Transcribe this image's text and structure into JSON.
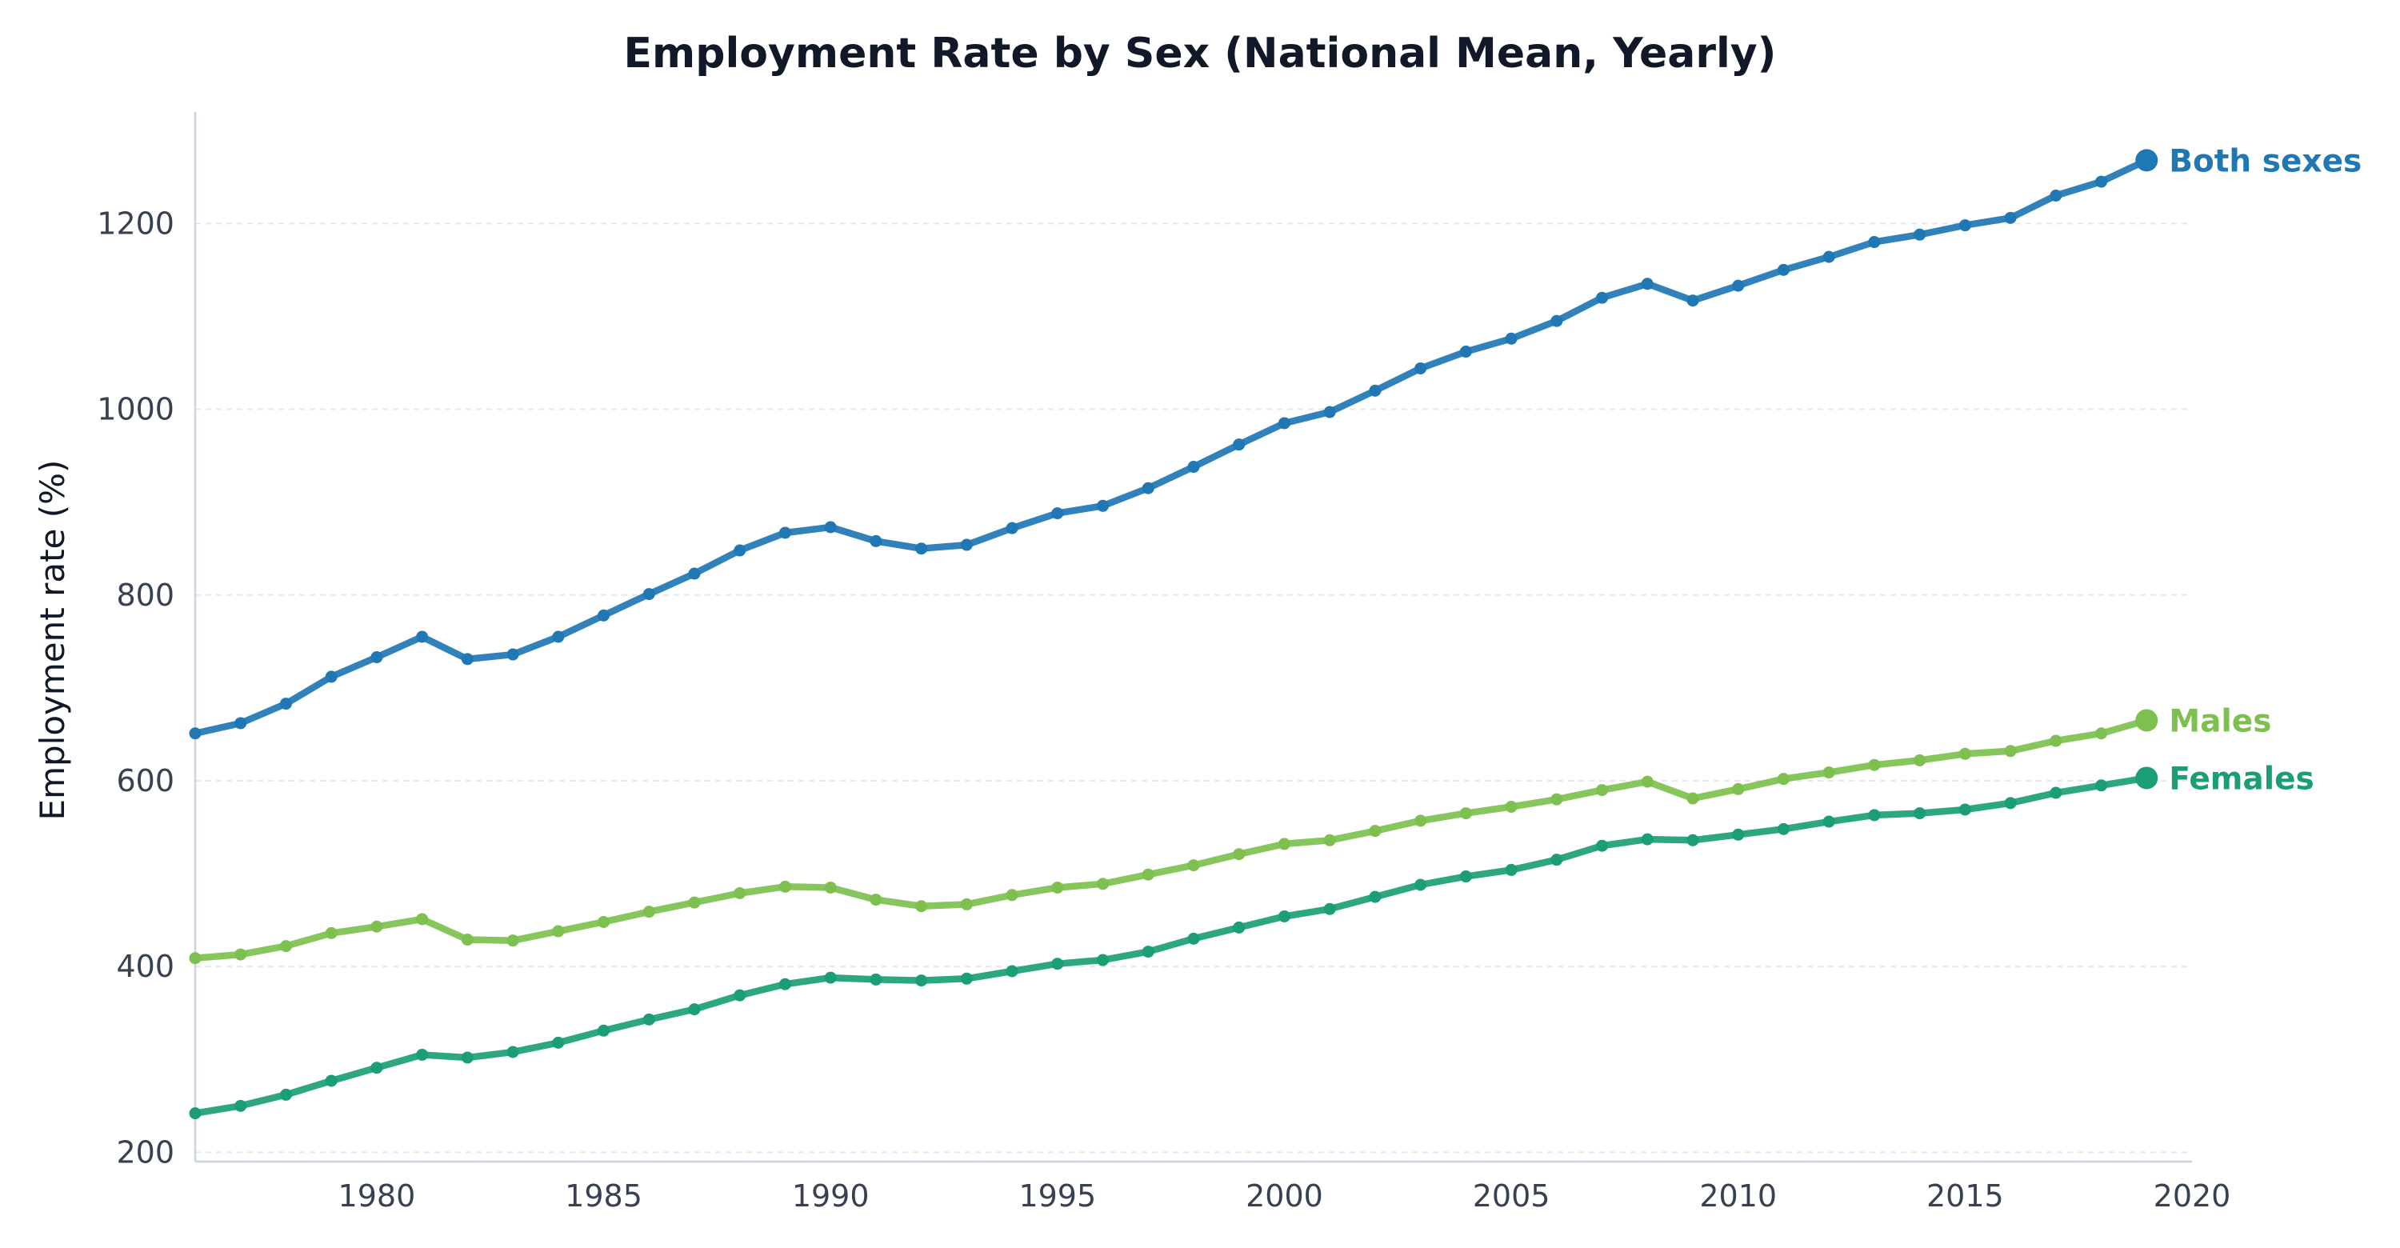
{
  "chart_data": {
    "type": "line",
    "title": "Employment Rate by Sex (National Mean, Yearly)",
    "xlabel": "",
    "ylabel": "Employment rate (%)",
    "xlim": [
      1976,
      2020
    ],
    "ylim": [
      190,
      1320
    ],
    "xticks": [
      1980,
      1985,
      1990,
      1995,
      2000,
      2005,
      2010,
      2015,
      2020
    ],
    "yticks": [
      200,
      400,
      600,
      800,
      1000,
      1200
    ],
    "grid": "horizontal dashed",
    "legend": "end-of-line labels",
    "x": [
      1976,
      1977,
      1978,
      1979,
      1980,
      1981,
      1982,
      1983,
      1984,
      1985,
      1986,
      1987,
      1988,
      1989,
      1990,
      1991,
      1992,
      1993,
      1994,
      1995,
      1996,
      1997,
      1998,
      1999,
      2000,
      2001,
      2002,
      2003,
      2004,
      2005,
      2006,
      2007,
      2008,
      2009,
      2010,
      2011,
      2012,
      2013,
      2014,
      2015,
      2016,
      2017,
      2018,
      2019
    ],
    "series": [
      {
        "name": "Both sexes",
        "color": "#1f77b4",
        "values": [
          651,
          662,
          683,
          712,
          733,
          755,
          731,
          736,
          755,
          778,
          801,
          823,
          848,
          867,
          873,
          858,
          850,
          854,
          872,
          888,
          896,
          915,
          938,
          962,
          985,
          997,
          1020,
          1044,
          1062,
          1076,
          1095,
          1120,
          1135,
          1117,
          1133,
          1150,
          1164,
          1180,
          1188,
          1198,
          1206,
          1230,
          1245,
          1268
        ]
      },
      {
        "name": "Males",
        "color": "#7dc04f",
        "values": [
          409,
          413,
          422,
          436,
          443,
          451,
          429,
          428,
          438,
          448,
          459,
          469,
          479,
          486,
          485,
          472,
          465,
          467,
          477,
          485,
          489,
          499,
          509,
          521,
          532,
          536,
          546,
          557,
          565,
          572,
          580,
          590,
          599,
          581,
          591,
          602,
          609,
          617,
          622,
          629,
          632,
          643,
          651,
          665
        ]
      },
      {
        "name": "Females",
        "color": "#1b9e77",
        "values": [
          242,
          250,
          262,
          277,
          291,
          305,
          302,
          308,
          318,
          331,
          343,
          354,
          369,
          381,
          388,
          386,
          385,
          387,
          395,
          403,
          407,
          416,
          430,
          442,
          454,
          462,
          475,
          488,
          497,
          504,
          515,
          530,
          537,
          536,
          542,
          548,
          556,
          563,
          565,
          569,
          576,
          587,
          595,
          603
        ]
      }
    ]
  }
}
